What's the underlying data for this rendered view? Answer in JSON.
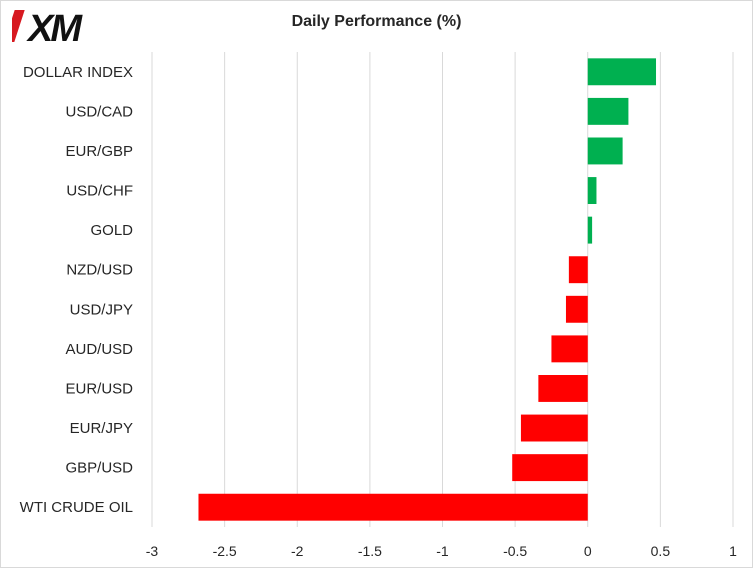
{
  "brand": {
    "logo_text": "XM"
  },
  "chart_data": {
    "type": "bar",
    "orientation": "horizontal",
    "title": "Daily Performance  (%)",
    "xlabel": "",
    "ylabel": "",
    "categories": [
      "DOLLAR INDEX",
      "USD/CAD",
      "EUR/GBP",
      "USD/CHF",
      "GOLD",
      "NZD/USD",
      "USD/JPY",
      "AUD/USD",
      "EUR/USD",
      "EUR/JPY",
      "GBP/USD",
      "WTI CRUDE OIL"
    ],
    "values": [
      0.47,
      0.28,
      0.24,
      0.06,
      0.03,
      -0.13,
      -0.15,
      -0.25,
      -0.34,
      -0.46,
      -0.52,
      -2.68
    ],
    "xlim": [
      -3,
      1
    ],
    "xticks": [
      -3,
      -2.5,
      -2,
      -1.5,
      -1,
      -0.5,
      0,
      0.5,
      1
    ],
    "xtick_labels": [
      "-3",
      "-2.5",
      "-2",
      "-1.5",
      "-1",
      "-0.5",
      "0",
      "0.5",
      "1"
    ],
    "grid": "vertical",
    "colors": {
      "positive": "#00b050",
      "negative": "#ff0000",
      "grid": "#d9d9d9"
    }
  }
}
